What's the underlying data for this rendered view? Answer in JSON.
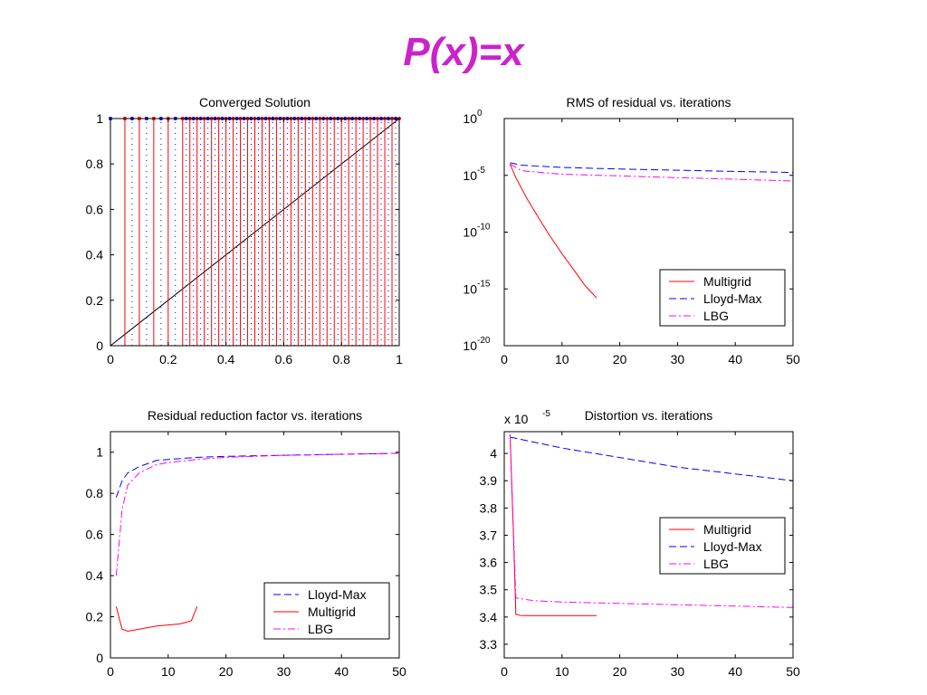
{
  "slide": {
    "title": "P(x)=x"
  },
  "chart_data": [
    {
      "type": "line",
      "title": "Converged Solution",
      "xlabel": "",
      "ylabel": "",
      "xlim": [
        0,
        1
      ],
      "ylim": [
        0,
        1
      ],
      "xticks": [
        "0",
        "0.2",
        "0.4",
        "0.6",
        "0.8",
        "1"
      ],
      "yticks": [
        "0",
        "0.2",
        "0.4",
        "0.6",
        "0.8",
        "1"
      ],
      "grid": false,
      "series": [
        {
          "kind": "identity-line",
          "x": [
            0,
            1
          ],
          "y": [
            0,
            1
          ],
          "color": "#000000"
        },
        {
          "kind": "red-vertical-lines",
          "color": "#ff0000",
          "x": [
            0.05,
            0.1,
            0.15,
            0.2,
            0.25,
            0.275,
            0.3,
            0.325,
            0.35,
            0.375,
            0.4,
            0.425,
            0.45,
            0.475,
            0.5,
            0.525,
            0.55,
            0.575,
            0.6,
            0.625,
            0.65,
            0.675,
            0.7,
            0.725,
            0.75,
            0.775,
            0.8,
            0.825,
            0.85,
            0.875,
            0.9,
            0.925,
            0.95,
            0.975,
            1.0
          ]
        },
        {
          "kind": "blue-dotted-lines",
          "color": "#0000ff",
          "x": [
            0.075,
            0.125,
            0.175,
            0.225,
            0.2625,
            0.2875,
            0.3125,
            0.3375,
            0.3625,
            0.3875,
            0.4125,
            0.4375,
            0.4625,
            0.4875,
            0.5125,
            0.5375,
            0.5625,
            0.5875,
            0.6125,
            0.6375,
            0.6625,
            0.6875,
            0.7125,
            0.7375,
            0.7625,
            0.7875,
            0.8125,
            0.8375,
            0.8625,
            0.8875,
            0.9125,
            0.9375,
            0.9625,
            0.9875
          ]
        }
      ]
    },
    {
      "type": "line",
      "title": "RMS of residual vs. iterations",
      "xlabel": "",
      "ylabel": "",
      "yscale": "log",
      "xlim": [
        0,
        50
      ],
      "ylim": [
        1e-20,
        1
      ],
      "xticks": [
        "0",
        "10",
        "20",
        "30",
        "40",
        "50"
      ],
      "yticks": [
        "10^0",
        "10^-5",
        "10^-10",
        "10^-15",
        "10^-20"
      ],
      "legend_placement": "bottom-right",
      "legend": [
        "Multigrid",
        "Lloyd-Max",
        "LBG"
      ],
      "series": [
        {
          "name": "Multigrid",
          "color": "#ff0000",
          "style": "solid",
          "x": [
            1,
            2,
            4,
            6,
            8,
            10,
            12,
            14,
            16
          ],
          "log10_y": [
            -4,
            -5.2,
            -7.1,
            -8.8,
            -10.4,
            -11.9,
            -13.3,
            -14.7,
            -15.8
          ]
        },
        {
          "name": "Lloyd-Max",
          "color": "#0000ff",
          "style": "dash",
          "x": [
            1,
            3,
            10,
            20,
            30,
            40,
            50
          ],
          "log10_y": [
            -3.9,
            -4.1,
            -4.3,
            -4.45,
            -4.55,
            -4.65,
            -4.75
          ]
        },
        {
          "name": "LBG",
          "color": "#ff00ff",
          "style": "dashdot",
          "x": [
            1,
            3,
            10,
            20,
            30,
            40,
            50
          ],
          "log10_y": [
            -4.0,
            -4.6,
            -4.9,
            -5.05,
            -5.2,
            -5.35,
            -5.5
          ]
        }
      ]
    },
    {
      "type": "line",
      "title": "Residual reduction factor vs. iterations",
      "xlabel": "",
      "ylabel": "",
      "xlim": [
        0,
        50
      ],
      "ylim": [
        0,
        1.1
      ],
      "xticks": [
        "0",
        "10",
        "20",
        "30",
        "40",
        "50"
      ],
      "yticks": [
        "0",
        "0.2",
        "0.4",
        "0.6",
        "0.8",
        "1"
      ],
      "legend_placement": "bottom-right",
      "legend": [
        "Lloyd-Max",
        "Multigrid",
        "LBG"
      ],
      "series": [
        {
          "name": "Lloyd-Max",
          "color": "#0000ff",
          "style": "dash",
          "x": [
            1,
            2,
            3,
            5,
            8,
            10,
            15,
            20,
            30,
            40,
            50
          ],
          "y": [
            0.78,
            0.86,
            0.9,
            0.93,
            0.96,
            0.965,
            0.975,
            0.98,
            0.985,
            0.99,
            0.995
          ]
        },
        {
          "name": "Multigrid",
          "color": "#ff0000",
          "style": "solid",
          "x": [
            1,
            2,
            3,
            5,
            8,
            10,
            12,
            14,
            15
          ],
          "y": [
            0.25,
            0.14,
            0.13,
            0.14,
            0.155,
            0.16,
            0.165,
            0.18,
            0.25
          ]
        },
        {
          "name": "LBG",
          "color": "#ff00ff",
          "style": "dashdot",
          "x": [
            1,
            2,
            3,
            5,
            8,
            10,
            15,
            20,
            30,
            40,
            50
          ],
          "y": [
            0.4,
            0.72,
            0.84,
            0.9,
            0.94,
            0.95,
            0.965,
            0.975,
            0.985,
            0.99,
            0.995
          ]
        }
      ]
    },
    {
      "type": "line",
      "title": "Distortion vs. iterations",
      "xlabel": "",
      "ylabel": "",
      "yscale_note": "x 10^-5",
      "xlim": [
        0,
        50
      ],
      "ylim": [
        3.25,
        4.08
      ],
      "xticks": [
        "0",
        "10",
        "20",
        "30",
        "40",
        "50"
      ],
      "yticks": [
        "3.3",
        "3.4",
        "3.5",
        "3.6",
        "3.7",
        "3.8",
        "3.9",
        "4"
      ],
      "legend_placement": "right",
      "legend": [
        "Multigrid",
        "Lloyd-Max",
        "LBG"
      ],
      "series": [
        {
          "name": "Multigrid",
          "color": "#ff0000",
          "style": "solid",
          "x": [
            1,
            1.6,
            2,
            3,
            16
          ],
          "y": [
            4.07,
            3.7,
            3.41,
            3.405,
            3.405
          ]
        },
        {
          "name": "Lloyd-Max",
          "color": "#0000ff",
          "style": "dash",
          "x": [
            1,
            10,
            20,
            30,
            40,
            50
          ],
          "y": [
            4.06,
            4.02,
            3.985,
            3.95,
            3.925,
            3.9
          ]
        },
        {
          "name": "LBG",
          "color": "#ff00ff",
          "style": "dashdot",
          "x": [
            1,
            2,
            5,
            10,
            20,
            30,
            40,
            50
          ],
          "y": [
            4.07,
            3.47,
            3.46,
            3.455,
            3.45,
            3.445,
            3.44,
            3.435
          ]
        }
      ]
    }
  ]
}
